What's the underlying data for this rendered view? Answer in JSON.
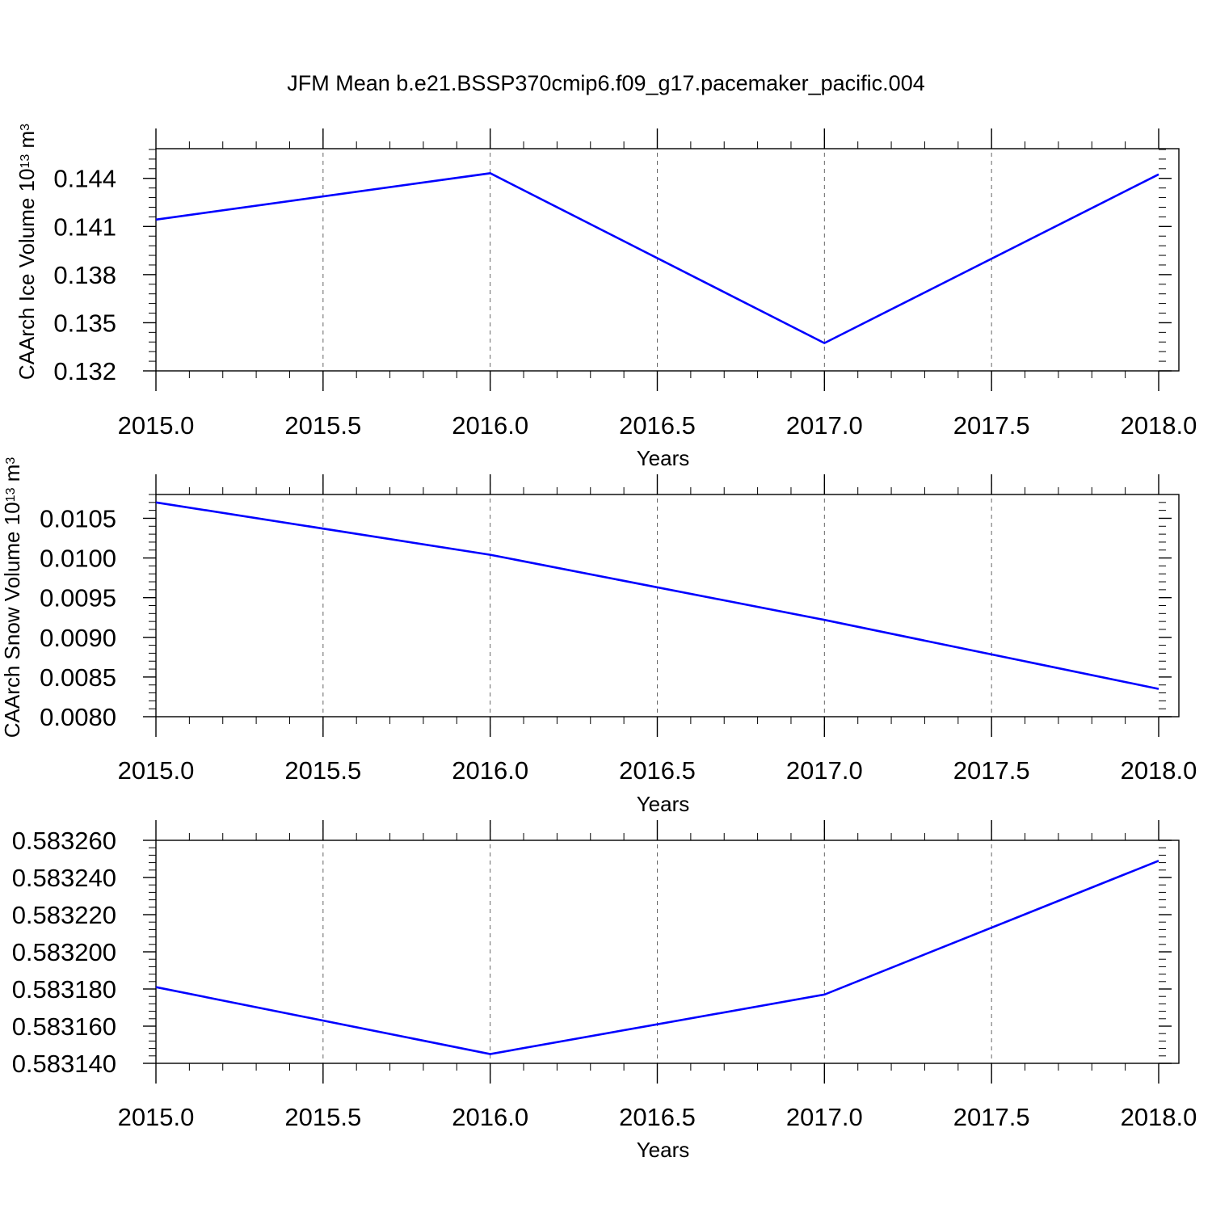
{
  "figure": {
    "title": "JFM Mean b.e21.BSSP370cmip6.f09_g17.pacemaker_pacific.004"
  },
  "colors": {
    "line": "#0000ff",
    "axes": "#000000",
    "grid": "#666666",
    "background": "#ffffff"
  },
  "chart_data": [
    {
      "type": "line",
      "title": "",
      "xlabel": "Years",
      "ylabel": "CAArch Ice Volume 10",
      "ylabel_exponent": "13",
      "ylabel_unit": "m",
      "ylabel_unit_exponent": "3",
      "xlim": [
        2015.0,
        2018.0
      ],
      "ylim": [
        0.132,
        0.14585
      ],
      "xticks": [
        "2015.0",
        "2015.5",
        "2016.0",
        "2016.5",
        "2017.0",
        "2017.5",
        "2018.0"
      ],
      "yticks": [
        "0.132",
        "0.135",
        "0.138",
        "0.141",
        "0.144"
      ],
      "grid": "vertical dashed at major x ticks",
      "series": [
        {
          "x": [
            2015,
            2016,
            2017,
            2018
          ],
          "y": [
            0.14143,
            0.14432,
            0.13373,
            0.14425
          ]
        }
      ]
    },
    {
      "type": "line",
      "title": "",
      "xlabel": "Years",
      "ylabel": "CAArch Snow Volume 10",
      "ylabel_exponent": "13",
      "ylabel_unit": "m",
      "ylabel_unit_exponent": "3",
      "xlim": [
        2015.0,
        2018.0
      ],
      "ylim": [
        0.008,
        0.0108
      ],
      "xticks": [
        "2015.0",
        "2015.5",
        "2016.0",
        "2016.5",
        "2017.0",
        "2017.5",
        "2018.0"
      ],
      "yticks": [
        "0.0080",
        "0.0085",
        "0.0090",
        "0.0095",
        "0.0100",
        "0.0105"
      ],
      "grid": "vertical dashed at major x ticks",
      "series": [
        {
          "x": [
            2015,
            2016,
            2017,
            2018
          ],
          "y": [
            0.0107,
            0.01004,
            0.00922,
            0.00835
          ]
        }
      ]
    },
    {
      "type": "line",
      "title": "",
      "xlabel": "Years",
      "ylabel": "",
      "xlim": [
        2015.0,
        2018.0
      ],
      "ylim": [
        0.58314,
        0.58326
      ],
      "xticks": [
        "2015.0",
        "2015.5",
        "2016.0",
        "2016.5",
        "2017.0",
        "2017.5",
        "2018.0"
      ],
      "yticks": [
        "0.583140",
        "0.583160",
        "0.583180",
        "0.583200",
        "0.583220",
        "0.583240",
        "0.583260"
      ],
      "grid": "vertical dashed at major x ticks",
      "series": [
        {
          "x": [
            2015,
            2016,
            2017,
            2018
          ],
          "y": [
            0.583181,
            0.583145,
            0.583177,
            0.583249
          ]
        }
      ]
    }
  ]
}
